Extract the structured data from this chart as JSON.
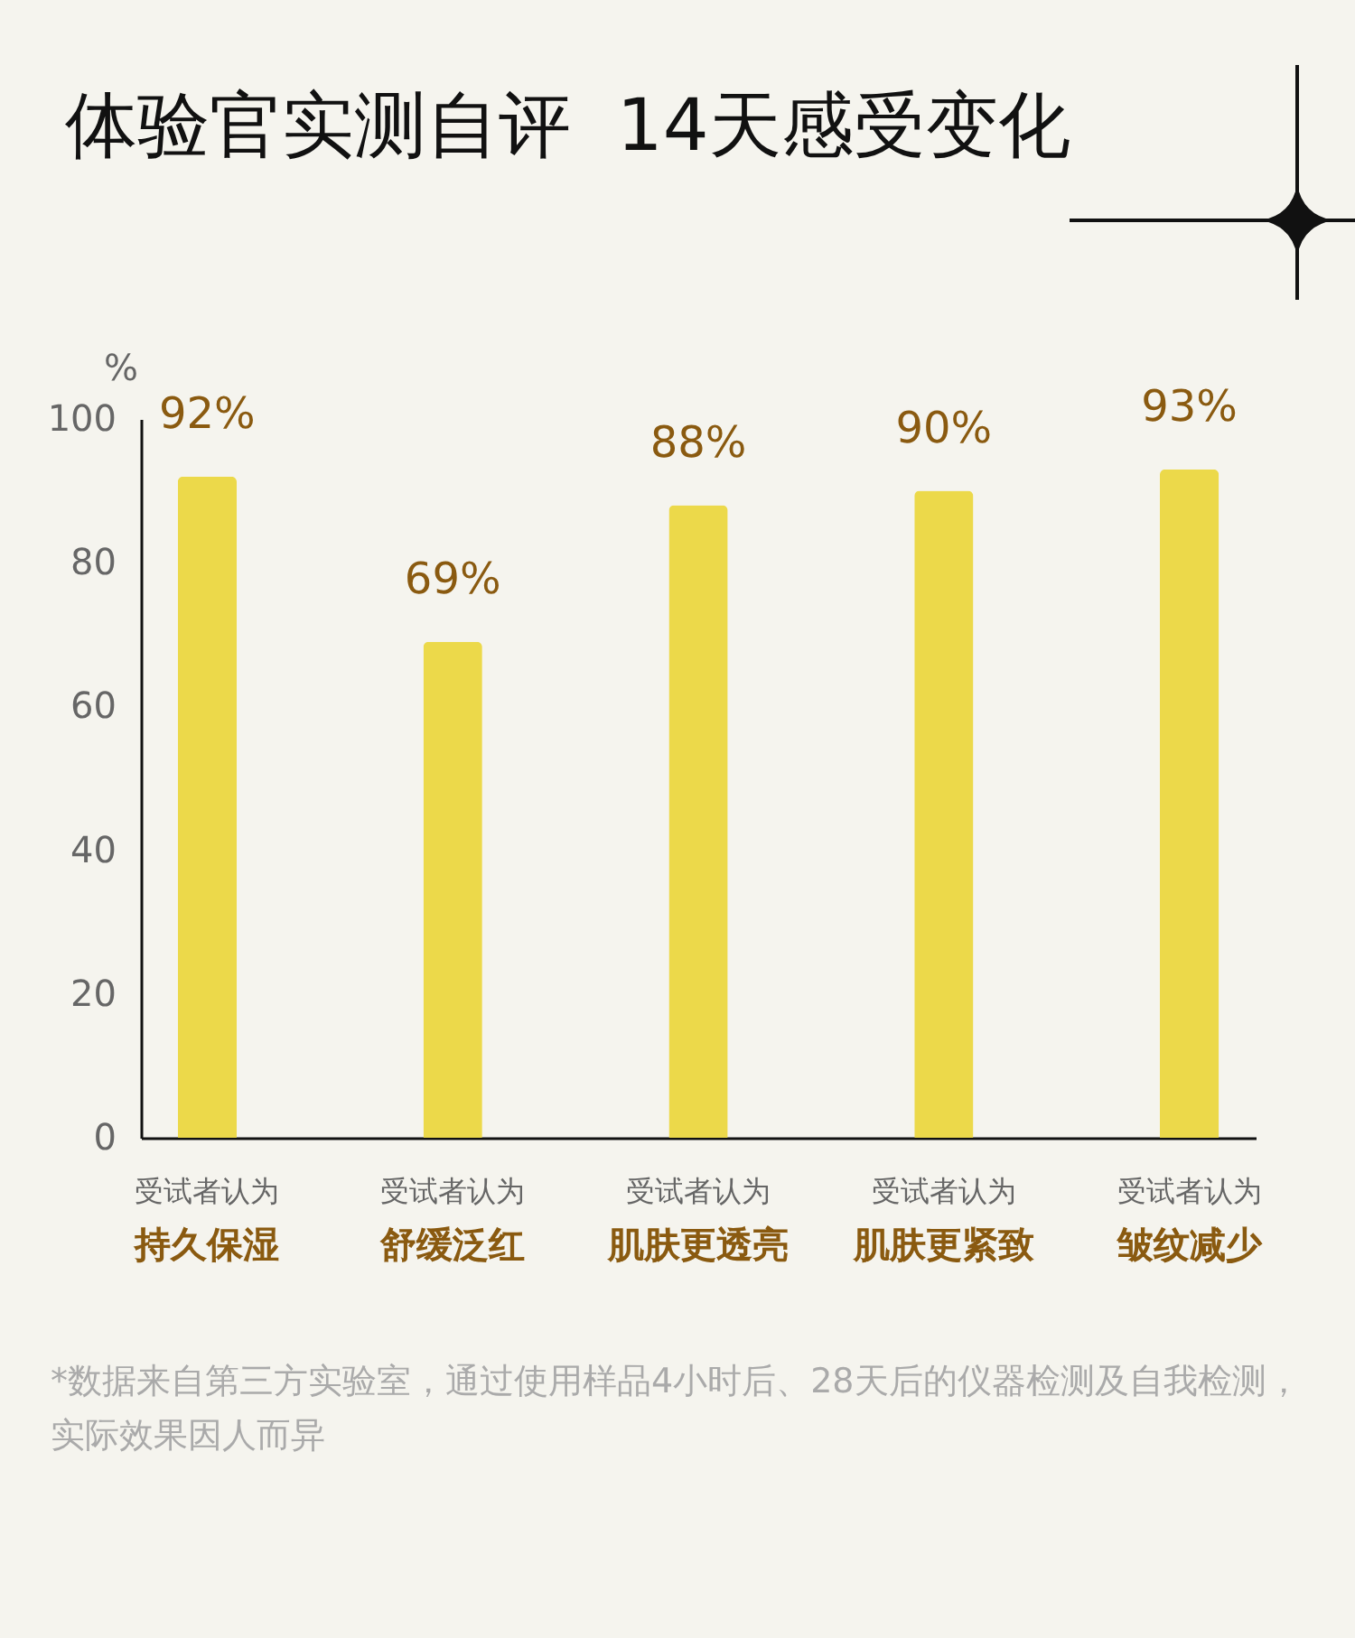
{
  "chart_data": {
    "type": "bar",
    "title": "体验官实测自评  14天感受变化",
    "ylabel": "%",
    "categories": [
      "受试者认为持久保湿",
      "受试者认为舒缓泛红",
      "受试者认为肌肤更透亮",
      "受试者认为肌肤更紧致",
      "受试者认为皱纹减少"
    ],
    "values": [
      92,
      69,
      88,
      90,
      93
    ],
    "value_labels": [
      "92%",
      "69%",
      "88%",
      "90%",
      "93%"
    ],
    "color": "#ecd94a",
    "ylim": [
      0,
      100
    ],
    "yticks": [
      0,
      20,
      40,
      60,
      80,
      100
    ],
    "grid": false,
    "annotations": [
      "*数据来自第三方实验室，通过使用样品4小时后、28天后的仪器检测及自我检测，实际效果因人而异"
    ]
  }
}
